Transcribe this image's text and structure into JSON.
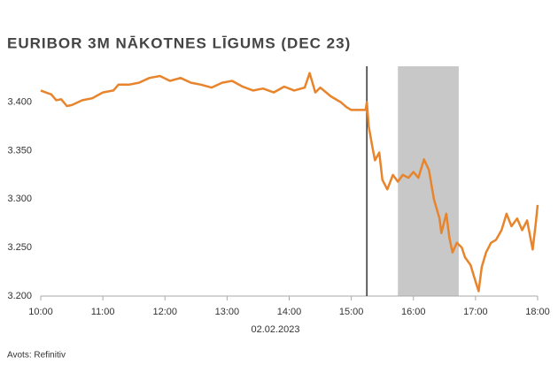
{
  "chart_data": {
    "type": "line",
    "title": "EURIBOR 3M NĀKOTNES LĪGUMS (DEC 23)",
    "xlabel": "02.02.2023",
    "source": "Avots: Refinitiv",
    "color": "#e8842c",
    "x": [
      10,
      10.08,
      10.17,
      10.25,
      10.33,
      10.42,
      10.5,
      10.67,
      10.83,
      11,
      11.17,
      11.25,
      11.42,
      11.58,
      11.75,
      11.92,
      12.08,
      12.25,
      12.42,
      12.58,
      12.75,
      12.92,
      13.08,
      13.25,
      13.42,
      13.58,
      13.75,
      13.92,
      14.08,
      14.25,
      14.33,
      14.42,
      14.5,
      14.67,
      14.83,
      14.92,
      15,
      15.17,
      15.23,
      15.25,
      15.28,
      15.33,
      15.38,
      15.45,
      15.5,
      15.58,
      15.67,
      15.75,
      15.83,
      15.92,
      16,
      16.08,
      16.17,
      16.25,
      16.33,
      16.42,
      16.45,
      16.53,
      16.58,
      16.63,
      16.7,
      16.78,
      16.83,
      16.92,
      17,
      17.05,
      17.1,
      17.17,
      17.25,
      17.33,
      17.42,
      17.5,
      17.58,
      17.67,
      17.75,
      17.83,
      17.92,
      17.97,
      18
    ],
    "values": [
      3.412,
      3.41,
      3.408,
      3.402,
      3.403,
      3.396,
      3.397,
      3.402,
      3.404,
      3.41,
      3.412,
      3.418,
      3.418,
      3.42,
      3.425,
      3.427,
      3.422,
      3.425,
      3.42,
      3.418,
      3.415,
      3.42,
      3.422,
      3.416,
      3.412,
      3.414,
      3.41,
      3.416,
      3.412,
      3.415,
      3.43,
      3.41,
      3.415,
      3.406,
      3.4,
      3.395,
      3.392,
      3.392,
      3.392,
      3.4,
      3.375,
      3.357,
      3.34,
      3.348,
      3.32,
      3.31,
      3.325,
      3.318,
      3.325,
      3.322,
      3.328,
      3.322,
      3.341,
      3.33,
      3.3,
      3.28,
      3.265,
      3.285,
      3.26,
      3.245,
      3.255,
      3.25,
      3.24,
      3.232,
      3.215,
      3.205,
      3.23,
      3.245,
      3.255,
      3.258,
      3.268,
      3.285,
      3.272,
      3.28,
      3.268,
      3.278,
      3.248,
      3.275,
      3.294
    ],
    "vline": 15.25,
    "shade": [
      15.75,
      16.73
    ],
    "xlim": [
      10,
      18
    ],
    "xticks": [
      {
        "value": 10,
        "label": "10:00"
      },
      {
        "value": 11,
        "label": "11:00"
      },
      {
        "value": 12,
        "label": "12:00"
      },
      {
        "value": 13,
        "label": "13:00"
      },
      {
        "value": 14,
        "label": "14:00"
      },
      {
        "value": 15,
        "label": "15:00"
      },
      {
        "value": 16,
        "label": "16:00"
      },
      {
        "value": 17,
        "label": "17:00"
      },
      {
        "value": 18,
        "label": "18:00"
      }
    ],
    "ylim": [
      3.2,
      3.437
    ],
    "yticks": [
      {
        "value": 3.2,
        "label": "3.200"
      },
      {
        "value": 3.25,
        "label": "3.250"
      },
      {
        "value": 3.3,
        "label": "3.300"
      },
      {
        "value": 3.35,
        "label": "3.350"
      },
      {
        "value": 3.4,
        "label": "3.400"
      }
    ]
  }
}
